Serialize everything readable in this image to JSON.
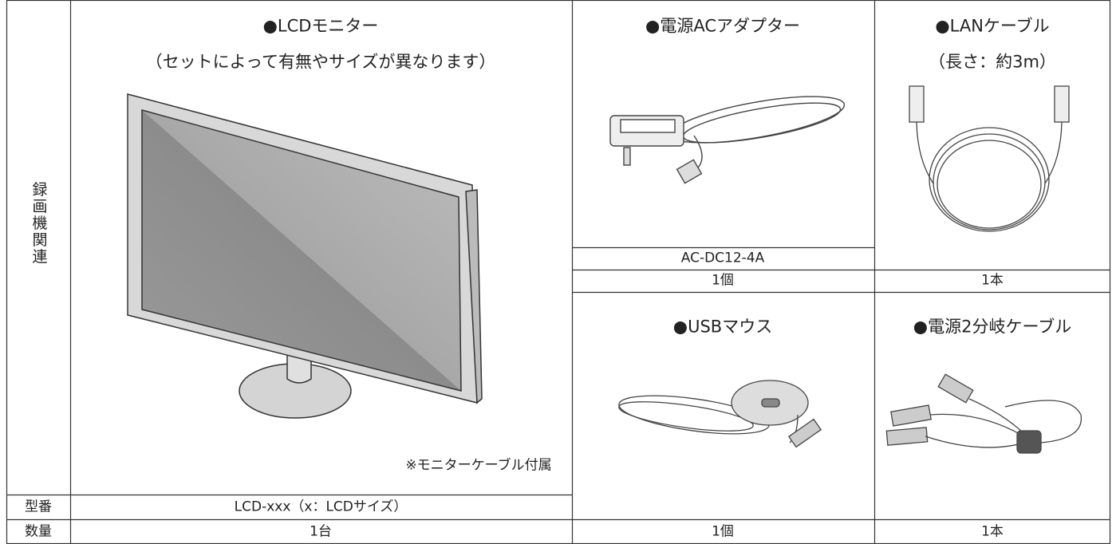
{
  "row_header": {
    "category": "録画機関連",
    "model": "型番",
    "quantity": "数量"
  },
  "items": [
    {
      "title": "●LCDモニター",
      "subtitle": "（セットによって有無やサイズが異なります）",
      "note": "※モニターケーブル付属",
      "model": "LCD-xxx（x：LCDサイズ）",
      "quantity": "1台"
    },
    {
      "title": "●電源ACアダプター",
      "model": "AC-DC12-4A",
      "quantity": "1個"
    },
    {
      "title": "●LANケーブル",
      "subtitle": "（長さ：約3m）",
      "quantity": "1本"
    },
    {
      "title": "●USBマウス",
      "quantity": "1個"
    },
    {
      "title": "●電源2分岐ケーブル",
      "quantity": "1本"
    }
  ]
}
